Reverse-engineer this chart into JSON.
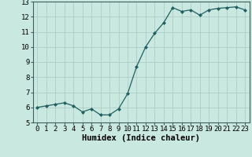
{
  "x": [
    0,
    1,
    2,
    3,
    4,
    5,
    6,
    7,
    8,
    9,
    10,
    11,
    12,
    13,
    14,
    15,
    16,
    17,
    18,
    19,
    20,
    21,
    22,
    23
  ],
  "y": [
    6.0,
    6.1,
    6.2,
    6.3,
    6.1,
    5.7,
    5.9,
    5.5,
    5.5,
    5.9,
    6.9,
    8.7,
    10.0,
    10.9,
    11.6,
    12.6,
    12.35,
    12.45,
    12.1,
    12.45,
    12.55,
    12.6,
    12.65,
    12.45
  ],
  "xlabel": "Humidex (Indice chaleur)",
  "ylim": [
    5,
    13
  ],
  "xlim": [
    -0.5,
    23.5
  ],
  "yticks": [
    5,
    6,
    7,
    8,
    9,
    10,
    11,
    12,
    13
  ],
  "xticks": [
    0,
    1,
    2,
    3,
    4,
    5,
    6,
    7,
    8,
    9,
    10,
    11,
    12,
    13,
    14,
    15,
    16,
    17,
    18,
    19,
    20,
    21,
    22,
    23
  ],
  "line_color": "#206060",
  "marker": "D",
  "marker_size": 2.0,
  "bg_color": "#c8e8e0",
  "grid_color": "#b0ccc8",
  "axes_bg": "#c8e8e0",
  "xlabel_fontsize": 7.5,
  "tick_fontsize": 6.5
}
